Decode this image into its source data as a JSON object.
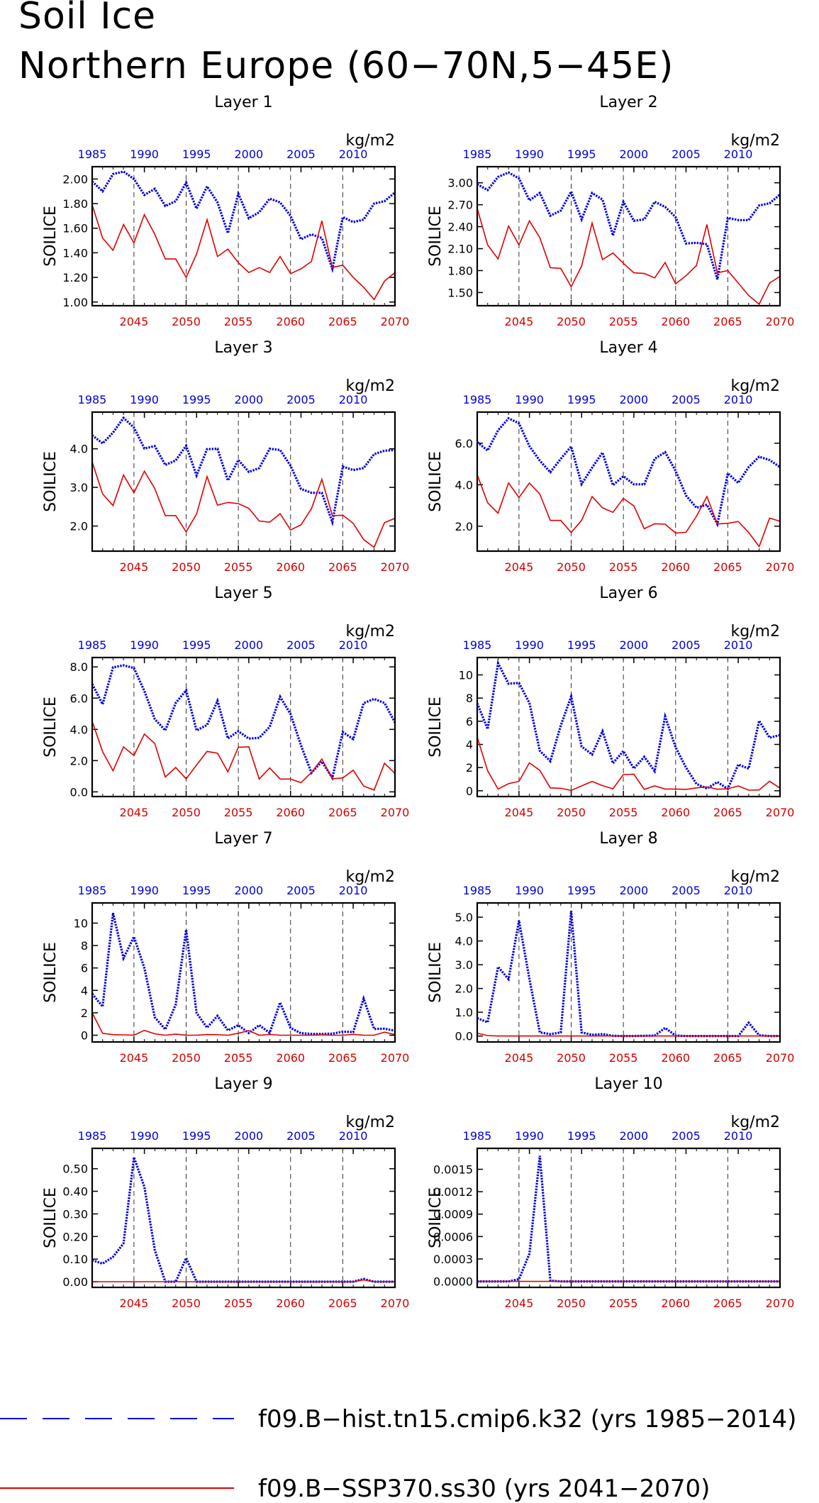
{
  "title": [
    "Soil Ice",
    "Northern Europe (60−70N,5−45E)"
  ],
  "colors": {
    "hist": "#0000e0",
    "ssp": "#e00000",
    "frame": "#000000"
  },
  "legend": [
    {
      "label": "f09.B−hist.tn15.cmip6.k32 (yrs 1985−2014)",
      "color": "#0000e0",
      "style": "dashed"
    },
    {
      "label": "f09.B−SSP370.ss30 (yrs 2041−2070)",
      "color": "#e00000",
      "style": "solid"
    }
  ],
  "chart_data": [
    {
      "type": "line",
      "title": "Layer 1",
      "ylabel": "SOILICE",
      "units": "kg/m2",
      "x_bottom_ticks": [
        "2045",
        "2050",
        "2055",
        "2060",
        "2065",
        "2070"
      ],
      "x_top_ticks": [
        "1985",
        "1990",
        "1995",
        "2000",
        "2005",
        "2010"
      ],
      "ylim": [
        0.97,
        2.1
      ],
      "yticks": [
        "1.00",
        "1.20",
        "1.40",
        "1.60",
        "1.80",
        "2.00"
      ],
      "series": [
        {
          "name": "f09.B−hist.tn15.cmip6.k32",
          "years": [
            1985,
            2014
          ],
          "values": [
            1.98,
            1.9,
            2.04,
            2.06,
            2.0,
            1.87,
            1.92,
            1.78,
            1.82,
            1.97,
            1.76,
            1.94,
            1.81,
            1.56,
            1.88,
            1.68,
            1.73,
            1.84,
            1.81,
            1.7,
            1.51,
            1.55,
            1.52,
            1.27,
            1.69,
            1.65,
            1.67,
            1.8,
            1.82,
            1.89
          ]
        },
        {
          "name": "f09.B−SSP370.ss30",
          "years": [
            2041,
            2070
          ],
          "values": [
            1.79,
            1.52,
            1.42,
            1.63,
            1.48,
            1.71,
            1.55,
            1.35,
            1.35,
            1.2,
            1.39,
            1.67,
            1.37,
            1.43,
            1.32,
            1.24,
            1.28,
            1.24,
            1.37,
            1.23,
            1.27,
            1.33,
            1.66,
            1.28,
            1.3,
            1.2,
            1.12,
            1.02,
            1.17,
            1.24
          ]
        }
      ]
    },
    {
      "type": "line",
      "title": "Layer 2",
      "ylabel": "SOILICE",
      "units": "kg/m2",
      "x_bottom_ticks": [
        "2045",
        "2050",
        "2055",
        "2060",
        "2065",
        "2070"
      ],
      "x_top_ticks": [
        "1985",
        "1990",
        "1995",
        "2000",
        "2005",
        "2010"
      ],
      "ylim": [
        1.32,
        3.22
      ],
      "yticks": [
        "1.50",
        "1.80",
        "2.10",
        "2.40",
        "2.70",
        "3.00"
      ],
      "series": [
        {
          "name": "f09.B−hist.tn15.cmip6.k32",
          "years": [
            1985,
            2014
          ],
          "values": [
            2.98,
            2.9,
            3.08,
            3.14,
            3.06,
            2.76,
            2.86,
            2.55,
            2.62,
            2.88,
            2.5,
            2.86,
            2.77,
            2.28,
            2.74,
            2.48,
            2.5,
            2.74,
            2.67,
            2.53,
            2.17,
            2.18,
            2.16,
            1.68,
            2.52,
            2.49,
            2.49,
            2.69,
            2.72,
            2.84
          ]
        },
        {
          "name": "f09.B−SSP370.ss30",
          "years": [
            2041,
            2070
          ],
          "values": [
            2.65,
            2.15,
            1.96,
            2.41,
            2.15,
            2.48,
            2.25,
            1.84,
            1.83,
            1.58,
            1.86,
            2.45,
            1.95,
            2.04,
            1.9,
            1.77,
            1.76,
            1.7,
            1.91,
            1.62,
            1.73,
            1.87,
            2.43,
            1.77,
            1.8,
            1.63,
            1.46,
            1.34,
            1.63,
            1.72
          ]
        }
      ]
    },
    {
      "type": "line",
      "title": "Layer 3",
      "ylabel": "SOILICE",
      "units": "kg/m2",
      "x_bottom_ticks": [
        "2045",
        "2050",
        "2055",
        "2060",
        "2065",
        "2070"
      ],
      "x_top_ticks": [
        "1985",
        "1990",
        "1995",
        "2000",
        "2005",
        "2010"
      ],
      "ylim": [
        1.35,
        4.95
      ],
      "yticks": [
        "2.0",
        "3.0",
        "4.0"
      ],
      "series": [
        {
          "name": "f09.B−hist.tn15.cmip6.k32",
          "years": [
            1985,
            2014
          ],
          "values": [
            4.35,
            4.14,
            4.42,
            4.8,
            4.55,
            4.01,
            4.07,
            3.58,
            3.7,
            4.08,
            3.31,
            3.99,
            4.0,
            3.18,
            3.71,
            3.4,
            3.5,
            4.0,
            3.97,
            3.56,
            2.96,
            2.86,
            2.86,
            2.1,
            3.54,
            3.45,
            3.5,
            3.86,
            3.95,
            3.97
          ]
        },
        {
          "name": "f09.B−SSP370.ss30",
          "years": [
            2041,
            2070
          ],
          "values": [
            3.66,
            2.83,
            2.53,
            3.32,
            2.86,
            3.42,
            2.97,
            2.27,
            2.27,
            1.85,
            2.31,
            3.28,
            2.54,
            2.61,
            2.58,
            2.46,
            2.13,
            2.1,
            2.32,
            1.9,
            2.03,
            2.45,
            3.21,
            2.27,
            2.28,
            2.07,
            1.65,
            1.45,
            2.09,
            2.2
          ]
        }
      ]
    },
    {
      "type": "line",
      "title": "Layer 4",
      "ylabel": "SOILICE",
      "units": "kg/m2",
      "x_bottom_ticks": [
        "2045",
        "2050",
        "2055",
        "2060",
        "2065",
        "2070"
      ],
      "x_top_ticks": [
        "1985",
        "1990",
        "1995",
        "2000",
        "2005",
        "2010"
      ],
      "ylim": [
        0.8,
        7.5
      ],
      "yticks": [
        "2.0",
        "4.0",
        "6.0"
      ],
      "series": [
        {
          "name": "f09.B−hist.tn15.cmip6.k32",
          "years": [
            1985,
            2014
          ],
          "values": [
            6.05,
            5.65,
            6.62,
            7.2,
            6.96,
            5.86,
            5.16,
            4.6,
            5.25,
            5.84,
            4.03,
            4.82,
            5.55,
            3.98,
            4.41,
            4.02,
            4.02,
            5.25,
            5.57,
            4.67,
            3.48,
            2.89,
            3.04,
            2.1,
            4.55,
            4.09,
            4.85,
            5.35,
            5.19,
            4.85
          ]
        },
        {
          "name": "f09.B−SSP370.ss30",
          "years": [
            2041,
            2070
          ],
          "values": [
            4.48,
            3.13,
            2.63,
            4.09,
            3.38,
            4.08,
            3.55,
            2.28,
            2.28,
            1.7,
            2.28,
            3.43,
            2.89,
            2.67,
            3.34,
            2.98,
            1.88,
            2.12,
            2.1,
            1.67,
            1.71,
            2.48,
            3.43,
            2.11,
            2.14,
            2.23,
            1.7,
            1.02,
            2.39,
            2.24
          ]
        }
      ]
    },
    {
      "type": "line",
      "title": "Layer 5",
      "ylabel": "SOILICE",
      "units": "kg/m2",
      "x_bottom_ticks": [
        "2045",
        "2050",
        "2055",
        "2060",
        "2065",
        "2070"
      ],
      "x_top_ticks": [
        "1985",
        "1990",
        "1995",
        "2000",
        "2005",
        "2010"
      ],
      "ylim": [
        -0.3,
        8.6
      ],
      "yticks": [
        "0.0",
        "2.0",
        "4.0",
        "6.0",
        "8.0"
      ],
      "series": [
        {
          "name": "f09.B−hist.tn15.cmip6.k32",
          "years": [
            1985,
            2014
          ],
          "values": [
            6.9,
            5.61,
            7.97,
            8.1,
            7.93,
            6.45,
            4.66,
            3.93,
            5.69,
            6.5,
            3.93,
            4.28,
            5.83,
            3.42,
            3.88,
            3.41,
            3.46,
            4.16,
            6.09,
            4.97,
            2.97,
            1.22,
            1.94,
            0.89,
            3.83,
            3.38,
            5.68,
            5.95,
            5.69,
            4.43
          ]
        },
        {
          "name": "f09.B−SSP370.ss30",
          "years": [
            2041,
            2070
          ],
          "values": [
            4.52,
            2.57,
            1.35,
            2.88,
            2.33,
            3.7,
            3.09,
            0.95,
            1.56,
            0.83,
            1.72,
            2.59,
            2.48,
            1.28,
            2.86,
            2.88,
            0.82,
            1.53,
            0.82,
            0.82,
            0.59,
            1.24,
            2.1,
            0.84,
            0.89,
            1.39,
            0.37,
            0.12,
            1.83,
            1.18
          ]
        }
      ]
    },
    {
      "type": "line",
      "title": "Layer 6",
      "ylabel": "SOILICE",
      "units": "kg/m2",
      "x_bottom_ticks": [
        "2045",
        "2050",
        "2055",
        "2060",
        "2065",
        "2070"
      ],
      "x_top_ticks": [
        "1985",
        "1990",
        "1995",
        "2000",
        "2005",
        "2010"
      ],
      "ylim": [
        -0.5,
        11.5
      ],
      "yticks": [
        "0",
        "2",
        "4",
        "6",
        "8",
        "10"
      ],
      "series": [
        {
          "name": "f09.B−hist.tn15.cmip6.k32",
          "years": [
            1985,
            2014
          ],
          "values": [
            7.55,
            5.32,
            11.0,
            9.24,
            9.31,
            7.57,
            3.44,
            2.55,
            5.62,
            8.14,
            3.82,
            3.13,
            5.14,
            2.38,
            3.43,
            1.92,
            2.93,
            1.69,
            6.42,
            3.74,
            1.99,
            0.59,
            0.19,
            0.75,
            0.17,
            2.26,
            1.91,
            6.04,
            4.58,
            4.8
          ]
        },
        {
          "name": "f09.B−SSP370.ss30",
          "years": [
            2041,
            2070
          ],
          "values": [
            4.62,
            1.72,
            0.14,
            0.61,
            0.81,
            2.41,
            1.76,
            0.25,
            0.21,
            0.03,
            0.42,
            0.8,
            0.44,
            0.17,
            1.4,
            1.43,
            0.12,
            0.42,
            0.15,
            0.15,
            0.12,
            0.25,
            0.33,
            0.13,
            0.17,
            0.41,
            0.05,
            0.07,
            0.82,
            0.23
          ]
        }
      ]
    },
    {
      "type": "line",
      "title": "Layer 7",
      "ylabel": "SOILICE",
      "units": "kg/m2",
      "x_bottom_ticks": [
        "2045",
        "2050",
        "2055",
        "2060",
        "2065",
        "2070"
      ],
      "x_top_ticks": [
        "1985",
        "1990",
        "1995",
        "2000",
        "2005",
        "2010"
      ],
      "ylim": [
        -0.6,
        11.8
      ],
      "yticks": [
        "0",
        "2",
        "4",
        "6",
        "8",
        "10"
      ],
      "series": [
        {
          "name": "f09.B−hist.tn15.cmip6.k32",
          "years": [
            1985,
            2014
          ],
          "values": [
            3.7,
            2.55,
            10.9,
            6.87,
            8.78,
            6.0,
            1.6,
            0.52,
            2.73,
            9.4,
            1.99,
            0.68,
            1.73,
            0.43,
            0.89,
            0.2,
            0.9,
            0.21,
            2.92,
            0.65,
            0.18,
            0.12,
            0.12,
            0.14,
            0.32,
            0.28,
            3.27,
            0.56,
            0.58,
            0.4
          ]
        },
        {
          "name": "f09.B−SSP370.ss30",
          "years": [
            2041,
            2070
          ],
          "values": [
            2.0,
            0.17,
            0.05,
            0.03,
            0.01,
            0.43,
            0.13,
            0.0,
            0.1,
            0.01,
            0.0,
            0.06,
            0.05,
            0.0,
            0.17,
            0.41,
            0.0,
            0.07,
            0.0,
            0.0,
            0.0,
            0.0,
            0.04,
            0.0,
            0.0,
            0.08,
            0.0,
            0.0,
            0.27,
            0.06
          ]
        }
      ]
    },
    {
      "type": "line",
      "title": "Layer 8",
      "ylabel": "SOILICE",
      "units": "kg/m2",
      "x_bottom_ticks": [
        "2045",
        "2050",
        "2055",
        "2060",
        "2065",
        "2070"
      ],
      "x_top_ticks": [
        "1985",
        "1990",
        "1995",
        "2000",
        "2005",
        "2010"
      ],
      "ylim": [
        -0.25,
        5.6
      ],
      "yticks": [
        "0.0",
        "1.0",
        "2.0",
        "3.0",
        "4.0",
        "5.0"
      ],
      "series": [
        {
          "name": "f09.B−hist.tn15.cmip6.k32",
          "years": [
            1985,
            2014
          ],
          "values": [
            0.75,
            0.58,
            2.91,
            2.39,
            4.86,
            2.4,
            0.15,
            0.08,
            0.15,
            5.27,
            0.15,
            0.05,
            0.08,
            0.01,
            0.0,
            0.0,
            0.01,
            0.02,
            0.34,
            0.02,
            0.0,
            0.0,
            0.0,
            0.0,
            0.0,
            0.0,
            0.56,
            0.03,
            0.0,
            0.0
          ]
        },
        {
          "name": "f09.B−SSP370.ss30",
          "years": [
            2041,
            2070
          ],
          "values": [
            0.12,
            0.02,
            0.0,
            0.0,
            0.0,
            0.0,
            0.0,
            0.0,
            0.0,
            0.0,
            0.0,
            0.0,
            0.0,
            0.0,
            0.0,
            0.0,
            0.0,
            0.0,
            0.0,
            0.0,
            0.0,
            0.0,
            0.0,
            0.0,
            0.0,
            0.0,
            0.0,
            0.0,
            0.0,
            0.0
          ]
        }
      ]
    },
    {
      "type": "line",
      "title": "Layer 9",
      "ylabel": "SOILICE",
      "units": "kg/m2",
      "x_bottom_ticks": [
        "2045",
        "2050",
        "2055",
        "2060",
        "2065",
        "2070"
      ],
      "x_top_ticks": [
        "1985",
        "1990",
        "1995",
        "2000",
        "2005",
        "2010"
      ],
      "ylim": [
        -0.025,
        0.59
      ],
      "yticks": [
        "0.00",
        "0.10",
        "0.20",
        "0.30",
        "0.40",
        "0.50"
      ],
      "series": [
        {
          "name": "f09.B−hist.tn15.cmip6.k32",
          "years": [
            1985,
            2014
          ],
          "values": [
            0.095,
            0.08,
            0.11,
            0.17,
            0.55,
            0.42,
            0.14,
            0.0,
            0.0,
            0.105,
            0.0,
            0.0,
            0.0,
            0.0,
            0.0,
            0.0,
            0.0,
            0.0,
            0.0,
            0.0,
            0.0,
            0.0,
            0.0,
            0.0,
            0.0,
            0.0,
            0.012,
            0.0,
            0.0,
            0.0
          ]
        },
        {
          "name": "f09.B−SSP370.ss30",
          "years": [
            2041,
            2070
          ],
          "values": [
            0.0,
            0.0,
            0.0,
            0.0,
            0.0,
            0.0,
            0.0,
            0.0,
            0.0,
            0.0,
            0.0,
            0.0,
            0.0,
            0.0,
            0.0,
            0.0,
            0.0,
            0.0,
            0.0,
            0.0,
            0.0,
            0.0,
            0.0,
            0.0,
            0.0,
            0.0,
            0.008,
            0.0,
            0.0,
            0.0
          ]
        }
      ]
    },
    {
      "type": "line",
      "title": "Layer 10",
      "ylabel": "SOILICE",
      "units": "kg/m2",
      "x_bottom_ticks": [
        "2045",
        "2050",
        "2055",
        "2060",
        "2065",
        "2070"
      ],
      "x_top_ticks": [
        "1985",
        "1990",
        "1995",
        "2000",
        "2005",
        "2010"
      ],
      "ylim": [
        -8e-05,
        0.00178
      ],
      "yticks": [
        "0.0000",
        "0.0003",
        "0.0006",
        "0.0009",
        "0.0012",
        "0.0015"
      ],
      "series": [
        {
          "name": "f09.B−hist.tn15.cmip6.k32",
          "years": [
            1985,
            2014
          ],
          "values": [
            0,
            0,
            0,
            0,
            3e-05,
            0.00037,
            0.00168,
            1e-05,
            0,
            0,
            0,
            0,
            0,
            0,
            0,
            0,
            0,
            0,
            0,
            0,
            0,
            0,
            0,
            0,
            0,
            0,
            0,
            0,
            0,
            0
          ]
        },
        {
          "name": "f09.B−SSP370.ss30",
          "years": [
            2041,
            2070
          ],
          "values": [
            0,
            0,
            0,
            0,
            0,
            0,
            0,
            0,
            0,
            0,
            0,
            0,
            0,
            0,
            0,
            0,
            0,
            0,
            0,
            0,
            0,
            0,
            0,
            0,
            0,
            0,
            0,
            0,
            0,
            0
          ]
        }
      ]
    }
  ]
}
